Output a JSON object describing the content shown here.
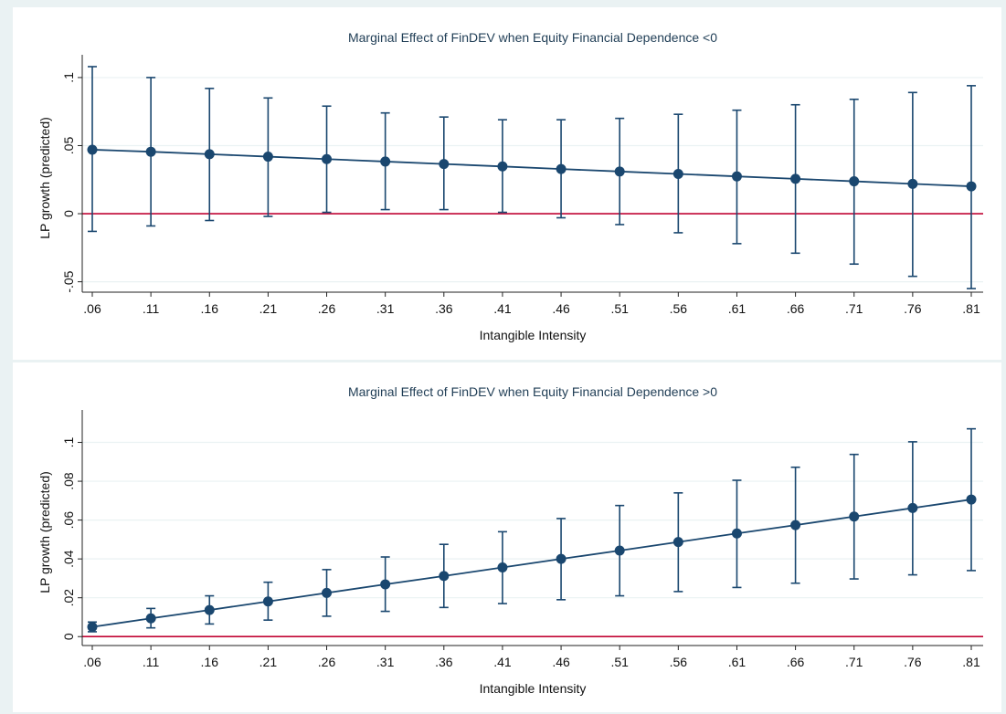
{
  "chart_data": [
    {
      "type": "line",
      "title": "Marginal Effect of  FinDEV when Equity Financial Dependence <0",
      "xlabel": "Intangible Intensity",
      "ylabel": "LP growth (predicted)",
      "x": [
        0.06,
        0.11,
        0.16,
        0.21,
        0.26,
        0.31,
        0.36,
        0.41,
        0.46,
        0.51,
        0.56,
        0.61,
        0.66,
        0.71,
        0.76,
        0.81
      ],
      "x_tick_labels": [
        ".06",
        ".11",
        ".16",
        ".21",
        ".26",
        ".31",
        ".36",
        ".41",
        ".46",
        ".51",
        ".56",
        ".61",
        ".66",
        ".71",
        ".76",
        ".81"
      ],
      "y_ticks": [
        -0.05,
        0,
        0.05,
        0.1
      ],
      "y_tick_labels": [
        "-.05",
        "0",
        ".05",
        ".1"
      ],
      "ylim": [
        -0.063,
        0.11
      ],
      "grid": true,
      "reference_line": 0,
      "series": [
        {
          "values": [
            0.047,
            0.0455,
            0.0437,
            0.0419,
            0.0401,
            0.0383,
            0.0365,
            0.0347,
            0.0328,
            0.031,
            0.0292,
            0.0274,
            0.0256,
            0.0238,
            0.0219,
            0.0201
          ],
          "ci_upper": [
            0.108,
            0.1,
            0.092,
            0.085,
            0.079,
            0.074,
            0.071,
            0.069,
            0.069,
            0.07,
            0.073,
            0.076,
            0.08,
            0.084,
            0.089,
            0.094
          ],
          "ci_lower": [
            -0.013,
            -0.009,
            -0.005,
            -0.002,
            0.001,
            0.003,
            0.003,
            0.001,
            -0.003,
            -0.008,
            -0.014,
            -0.022,
            -0.029,
            -0.037,
            -0.046,
            -0.055
          ]
        }
      ],
      "colors": {
        "series": "#1a476f",
        "reference": "#c10534",
        "grid": "#eaf2f3"
      }
    },
    {
      "type": "line",
      "title": "Marginal Effect of  FinDEV when Equity Financial Dependence >0",
      "xlabel": "Intangible Intensity",
      "ylabel": "LP growth (predicted)",
      "x": [
        0.06,
        0.11,
        0.16,
        0.21,
        0.26,
        0.31,
        0.36,
        0.41,
        0.46,
        0.51,
        0.56,
        0.61,
        0.66,
        0.71,
        0.76,
        0.81
      ],
      "x_tick_labels": [
        ".06",
        ".11",
        ".16",
        ".21",
        ".26",
        ".31",
        ".36",
        ".41",
        ".46",
        ".51",
        ".56",
        ".61",
        ".66",
        ".71",
        ".76",
        ".81"
      ],
      "y_ticks": [
        0,
        0.02,
        0.04,
        0.06,
        0.08,
        0.1
      ],
      "y_tick_labels": [
        "0",
        ".02",
        ".04",
        ".06",
        ".08",
        ".1"
      ],
      "ylim": [
        -0.006,
        0.112
      ],
      "grid": true,
      "reference_line": 0,
      "series": [
        {
          "values": [
            0.005,
            0.0094,
            0.0137,
            0.0181,
            0.0225,
            0.0269,
            0.0312,
            0.0356,
            0.04,
            0.0443,
            0.0487,
            0.0531,
            0.0574,
            0.0618,
            0.0662,
            0.0706
          ],
          "ci_upper": [
            0.0075,
            0.0145,
            0.021,
            0.028,
            0.0345,
            0.041,
            0.0475,
            0.054,
            0.0608,
            0.0675,
            0.074,
            0.0805,
            0.0872,
            0.0938,
            0.1003,
            0.107
          ],
          "ci_lower": [
            0.0025,
            0.0045,
            0.0065,
            0.0085,
            0.0105,
            0.013,
            0.015,
            0.017,
            0.019,
            0.021,
            0.0232,
            0.0253,
            0.0275,
            0.0297,
            0.0318,
            0.034
          ]
        }
      ],
      "colors": {
        "series": "#1a476f",
        "reference": "#c10534",
        "grid": "#eaf2f3"
      }
    }
  ]
}
